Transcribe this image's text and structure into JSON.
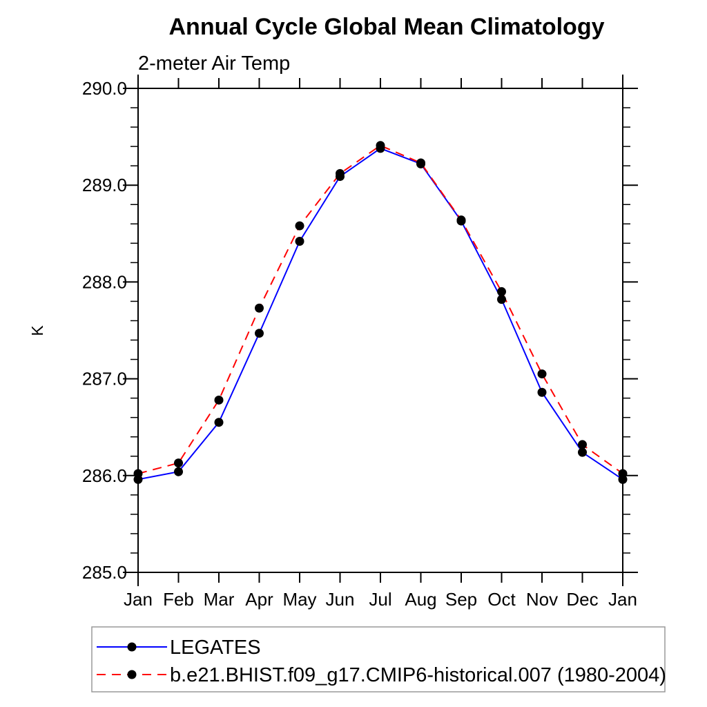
{
  "page": {
    "background": "#ffffff"
  },
  "chart_data": {
    "type": "line",
    "title": "Annual Cycle Global Mean Climatology",
    "subtitle": "2-meter Air Temp",
    "ylabel": "K",
    "x_categories": [
      "Jan",
      "Feb",
      "Mar",
      "Apr",
      "May",
      "Jun",
      "Jul",
      "Aug",
      "Sep",
      "Oct",
      "Nov",
      "Dec",
      "Jan"
    ],
    "ylim": [
      285.0,
      290.0
    ],
    "y_major_ticks": [
      285.0,
      286.0,
      287.0,
      288.0,
      289.0,
      290.0
    ],
    "y_tick_labels": [
      "285.0",
      "286.0",
      "287.0",
      "288.0",
      "289.0",
      "290.0"
    ],
    "y_minor_step": 0.2,
    "grid": false,
    "legend_position": "bottom-left",
    "axis_color": "#000000",
    "marker_color": "#000000",
    "legend_border_color": "#999999",
    "series": [
      {
        "name": "LEGATES",
        "color": "#0000ff",
        "line_style": "solid",
        "marker": "filled-circle",
        "values": [
          285.96,
          286.04,
          286.55,
          287.47,
          288.42,
          289.09,
          289.38,
          289.22,
          288.63,
          287.82,
          286.86,
          286.24,
          285.96
        ]
      },
      {
        "name": "b.e21.BHIST.f09_g17.CMIP6-historical.007 (1980-2004)",
        "color": "#ff0000",
        "line_style": "dashed",
        "marker": "filled-circle",
        "values": [
          286.02,
          286.13,
          286.78,
          287.73,
          288.58,
          289.12,
          289.41,
          289.23,
          288.64,
          287.9,
          287.05,
          286.32,
          286.02
        ]
      }
    ]
  }
}
